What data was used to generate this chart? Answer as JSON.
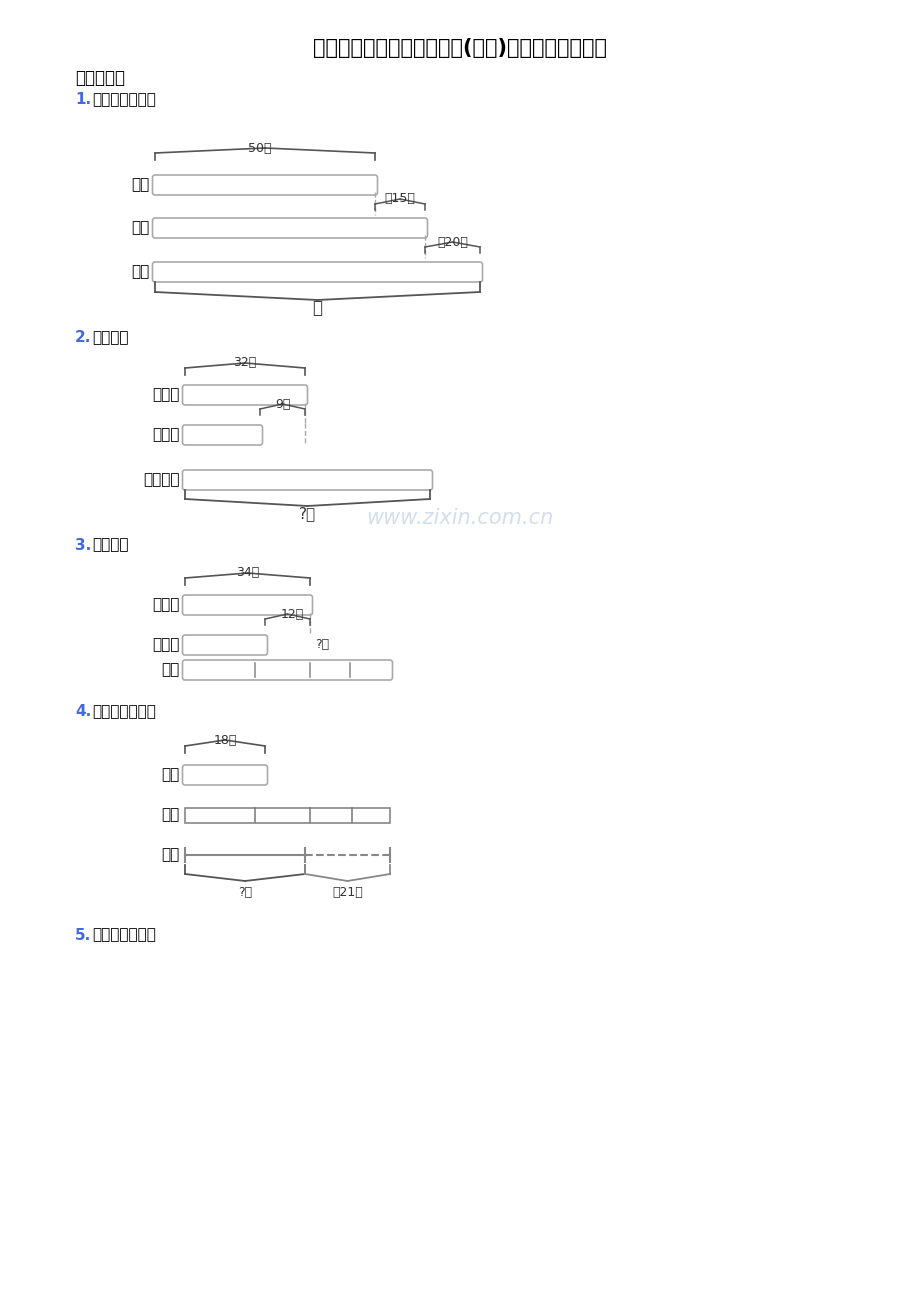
{
  "title": "苏教版精选小学三年级数学(上册)应用题大全和答案",
  "section": "一、选择题",
  "q1_label": "1.",
  "q1_text": "看图列式解答。",
  "q2_label": "2.",
  "q2_text": "列算式。",
  "q3_label": "3.",
  "q3_text": "列算式。",
  "q4_label": "4.",
  "q4_text": "看图列式计算。",
  "q5_label": "5.",
  "q5_text": "看图列式解答。",
  "watermark": "www.zixin.com.cn",
  "label_color": "#4169E1",
  "bar_color": "#888888",
  "text_color": "#000000",
  "bg_color": "#ffffff"
}
